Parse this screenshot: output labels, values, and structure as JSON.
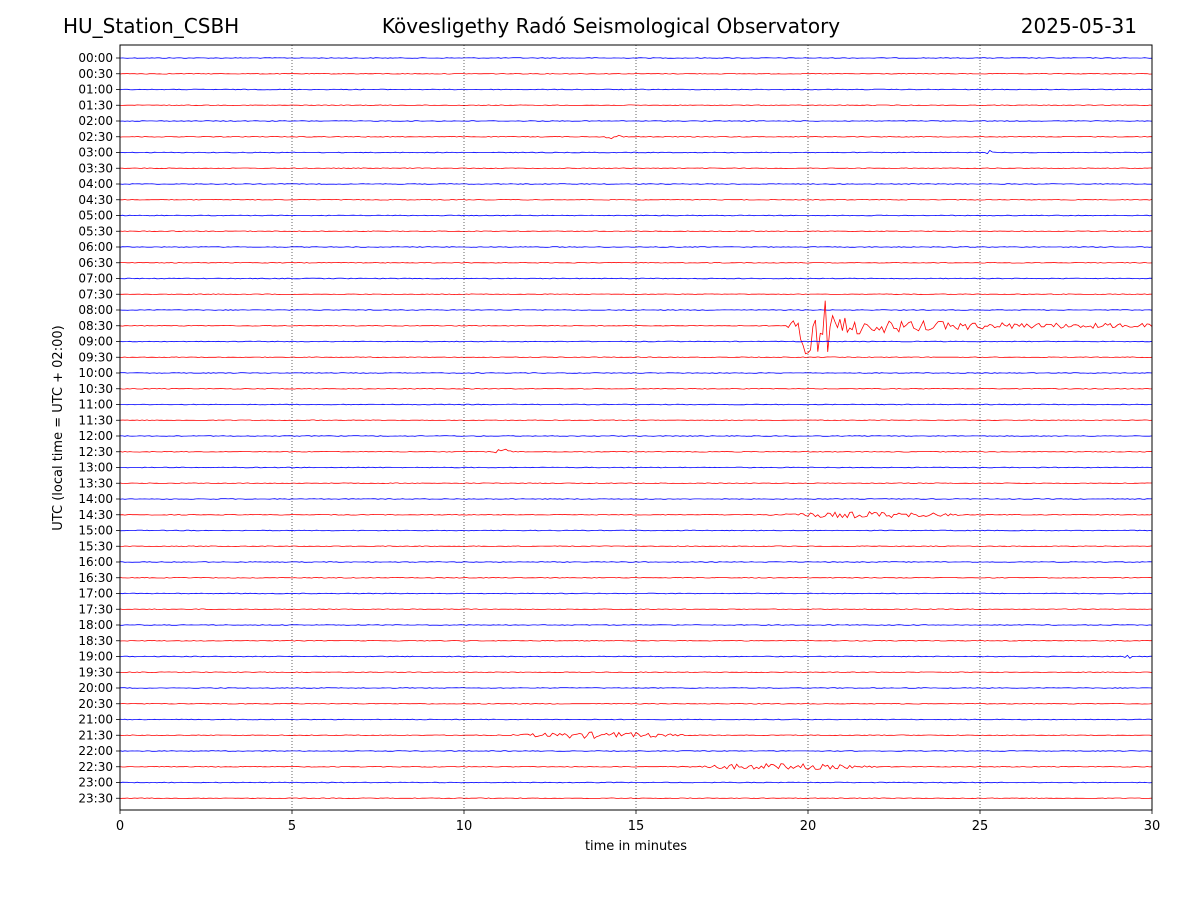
{
  "header": {
    "station": "HU_Station_CSBH",
    "observatory": "Kövesligethy Radó Seismological Observatory",
    "date": "2025-05-31"
  },
  "chart_data": {
    "type": "line",
    "title": "Kövesligethy Radó Seismological Observatory",
    "xlabel": "time in minutes",
    "ylabel": "UTC (local time = UTC + 02:00)",
    "xlim": [
      0,
      30
    ],
    "x_ticks": [
      0,
      5,
      10,
      15,
      20,
      25,
      30
    ],
    "vertical_gridlines": [
      5,
      10,
      15,
      20,
      25
    ],
    "y_tick_labels": [
      "00:00",
      "00:30",
      "01:00",
      "01:30",
      "02:00",
      "02:30",
      "03:00",
      "03:30",
      "04:00",
      "04:30",
      "05:00",
      "05:30",
      "06:00",
      "06:30",
      "07:00",
      "07:30",
      "08:00",
      "08:30",
      "09:00",
      "09:30",
      "10:00",
      "10:30",
      "11:00",
      "11:30",
      "12:00",
      "12:30",
      "13:00",
      "13:30",
      "14:00",
      "14:30",
      "15:00",
      "15:30",
      "16:00",
      "16:30",
      "17:00",
      "17:30",
      "18:00",
      "18:30",
      "19:00",
      "19:30",
      "20:00",
      "20:30",
      "21:00",
      "21:30",
      "22:00",
      "22:30",
      "23:00",
      "23:30"
    ],
    "trace_colors": [
      "#0000ff",
      "#ff0000"
    ],
    "trace_color_rule": "alternating: blue on the hour, red on the half hour",
    "events": [
      {
        "trace": "08:30",
        "start_min": 19.4,
        "end_min": 30,
        "peak_amplitude": "large",
        "description_kind": "earthquake"
      },
      {
        "trace": "14:30",
        "start_min": 18.8,
        "end_min": 24.5,
        "peak_amplitude": "small"
      },
      {
        "trace": "21:30",
        "start_min": 11.3,
        "end_min": 16.5,
        "peak_amplitude": "small"
      },
      {
        "trace": "22:30",
        "start_min": 16.3,
        "end_min": 22.0,
        "peak_amplitude": "small"
      },
      {
        "trace": "02:30",
        "start_min": 14.1,
        "end_min": 14.7,
        "peak_amplitude": "small"
      },
      {
        "trace": "12:30",
        "start_min": 10.9,
        "end_min": 11.4,
        "peak_amplitude": "small"
      },
      {
        "trace": "03:00",
        "start_min": 25.2,
        "end_min": 25.4,
        "peak_amplitude": "small"
      },
      {
        "trace": "19:00",
        "start_min": 29.2,
        "end_min": 29.4,
        "peak_amplitude": "small"
      }
    ]
  }
}
